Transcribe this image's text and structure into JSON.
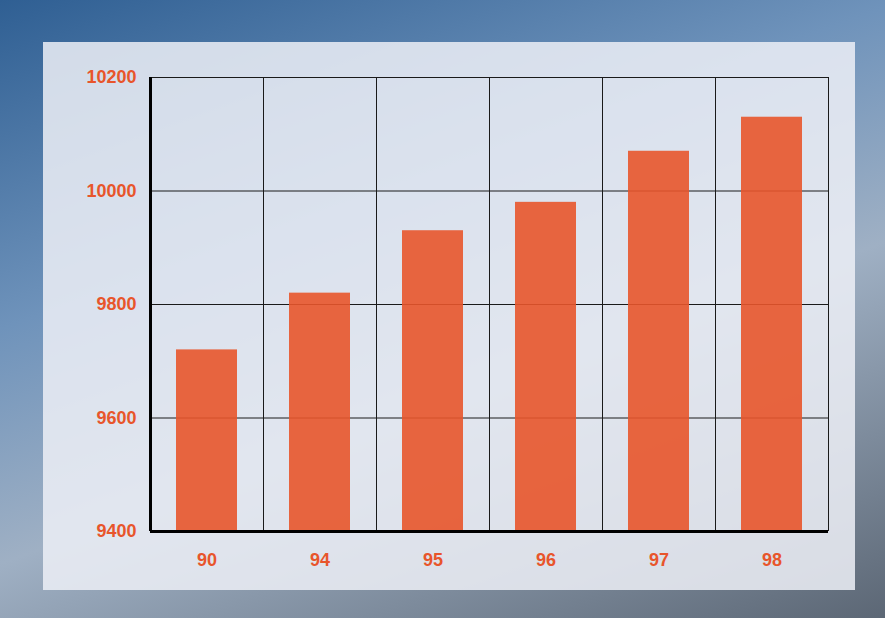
{
  "chart_data": {
    "type": "bar",
    "categories": [
      "90",
      "94",
      "95",
      "96",
      "97",
      "98"
    ],
    "values": [
      9720,
      9820,
      9930,
      9980,
      10070,
      10130
    ],
    "color": "#e8552b",
    "ylim": [
      9400,
      10200
    ],
    "yticks": [
      9400,
      9600,
      9800,
      10000,
      10200
    ],
    "grid": true
  }
}
